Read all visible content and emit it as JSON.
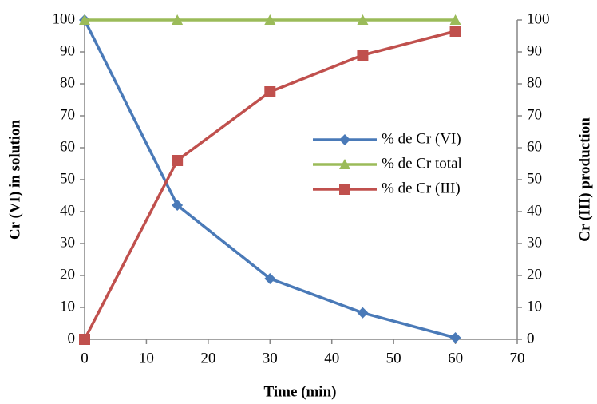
{
  "chart_data": {
    "type": "line",
    "x_label": "Time (min)",
    "y_label": "Cr (VI) in solution",
    "y2_label": "Cr (III) production",
    "x": [
      0,
      15,
      30,
      45,
      60
    ],
    "series": [
      {
        "name": "% de Cr (VI)",
        "color": "#4a7ab8",
        "marker": "diamond",
        "values": [
          100,
          42,
          19,
          8.3,
          0.5
        ]
      },
      {
        "name": "% de Cr total",
        "color": "#9bbb59",
        "marker": "triangle",
        "values": [
          100,
          100,
          100,
          100,
          100
        ]
      },
      {
        "name": "% de Cr (III)",
        "color": "#c0504d",
        "marker": "square",
        "axis": "y2",
        "values": [
          0,
          56,
          77.5,
          89,
          96.5
        ]
      }
    ],
    "xlim": [
      0,
      70
    ],
    "xticks": [
      0,
      10,
      20,
      30,
      40,
      50,
      60,
      70
    ],
    "ylim": [
      0,
      100
    ],
    "yticks": [
      0,
      10,
      20,
      30,
      40,
      50,
      60,
      70,
      80,
      90,
      100
    ],
    "y2lim": [
      0,
      100
    ],
    "y2ticks": [
      0,
      10,
      20,
      30,
      40,
      50,
      60,
      70,
      80,
      90,
      100
    ],
    "grid": false,
    "legend": "center-right"
  }
}
